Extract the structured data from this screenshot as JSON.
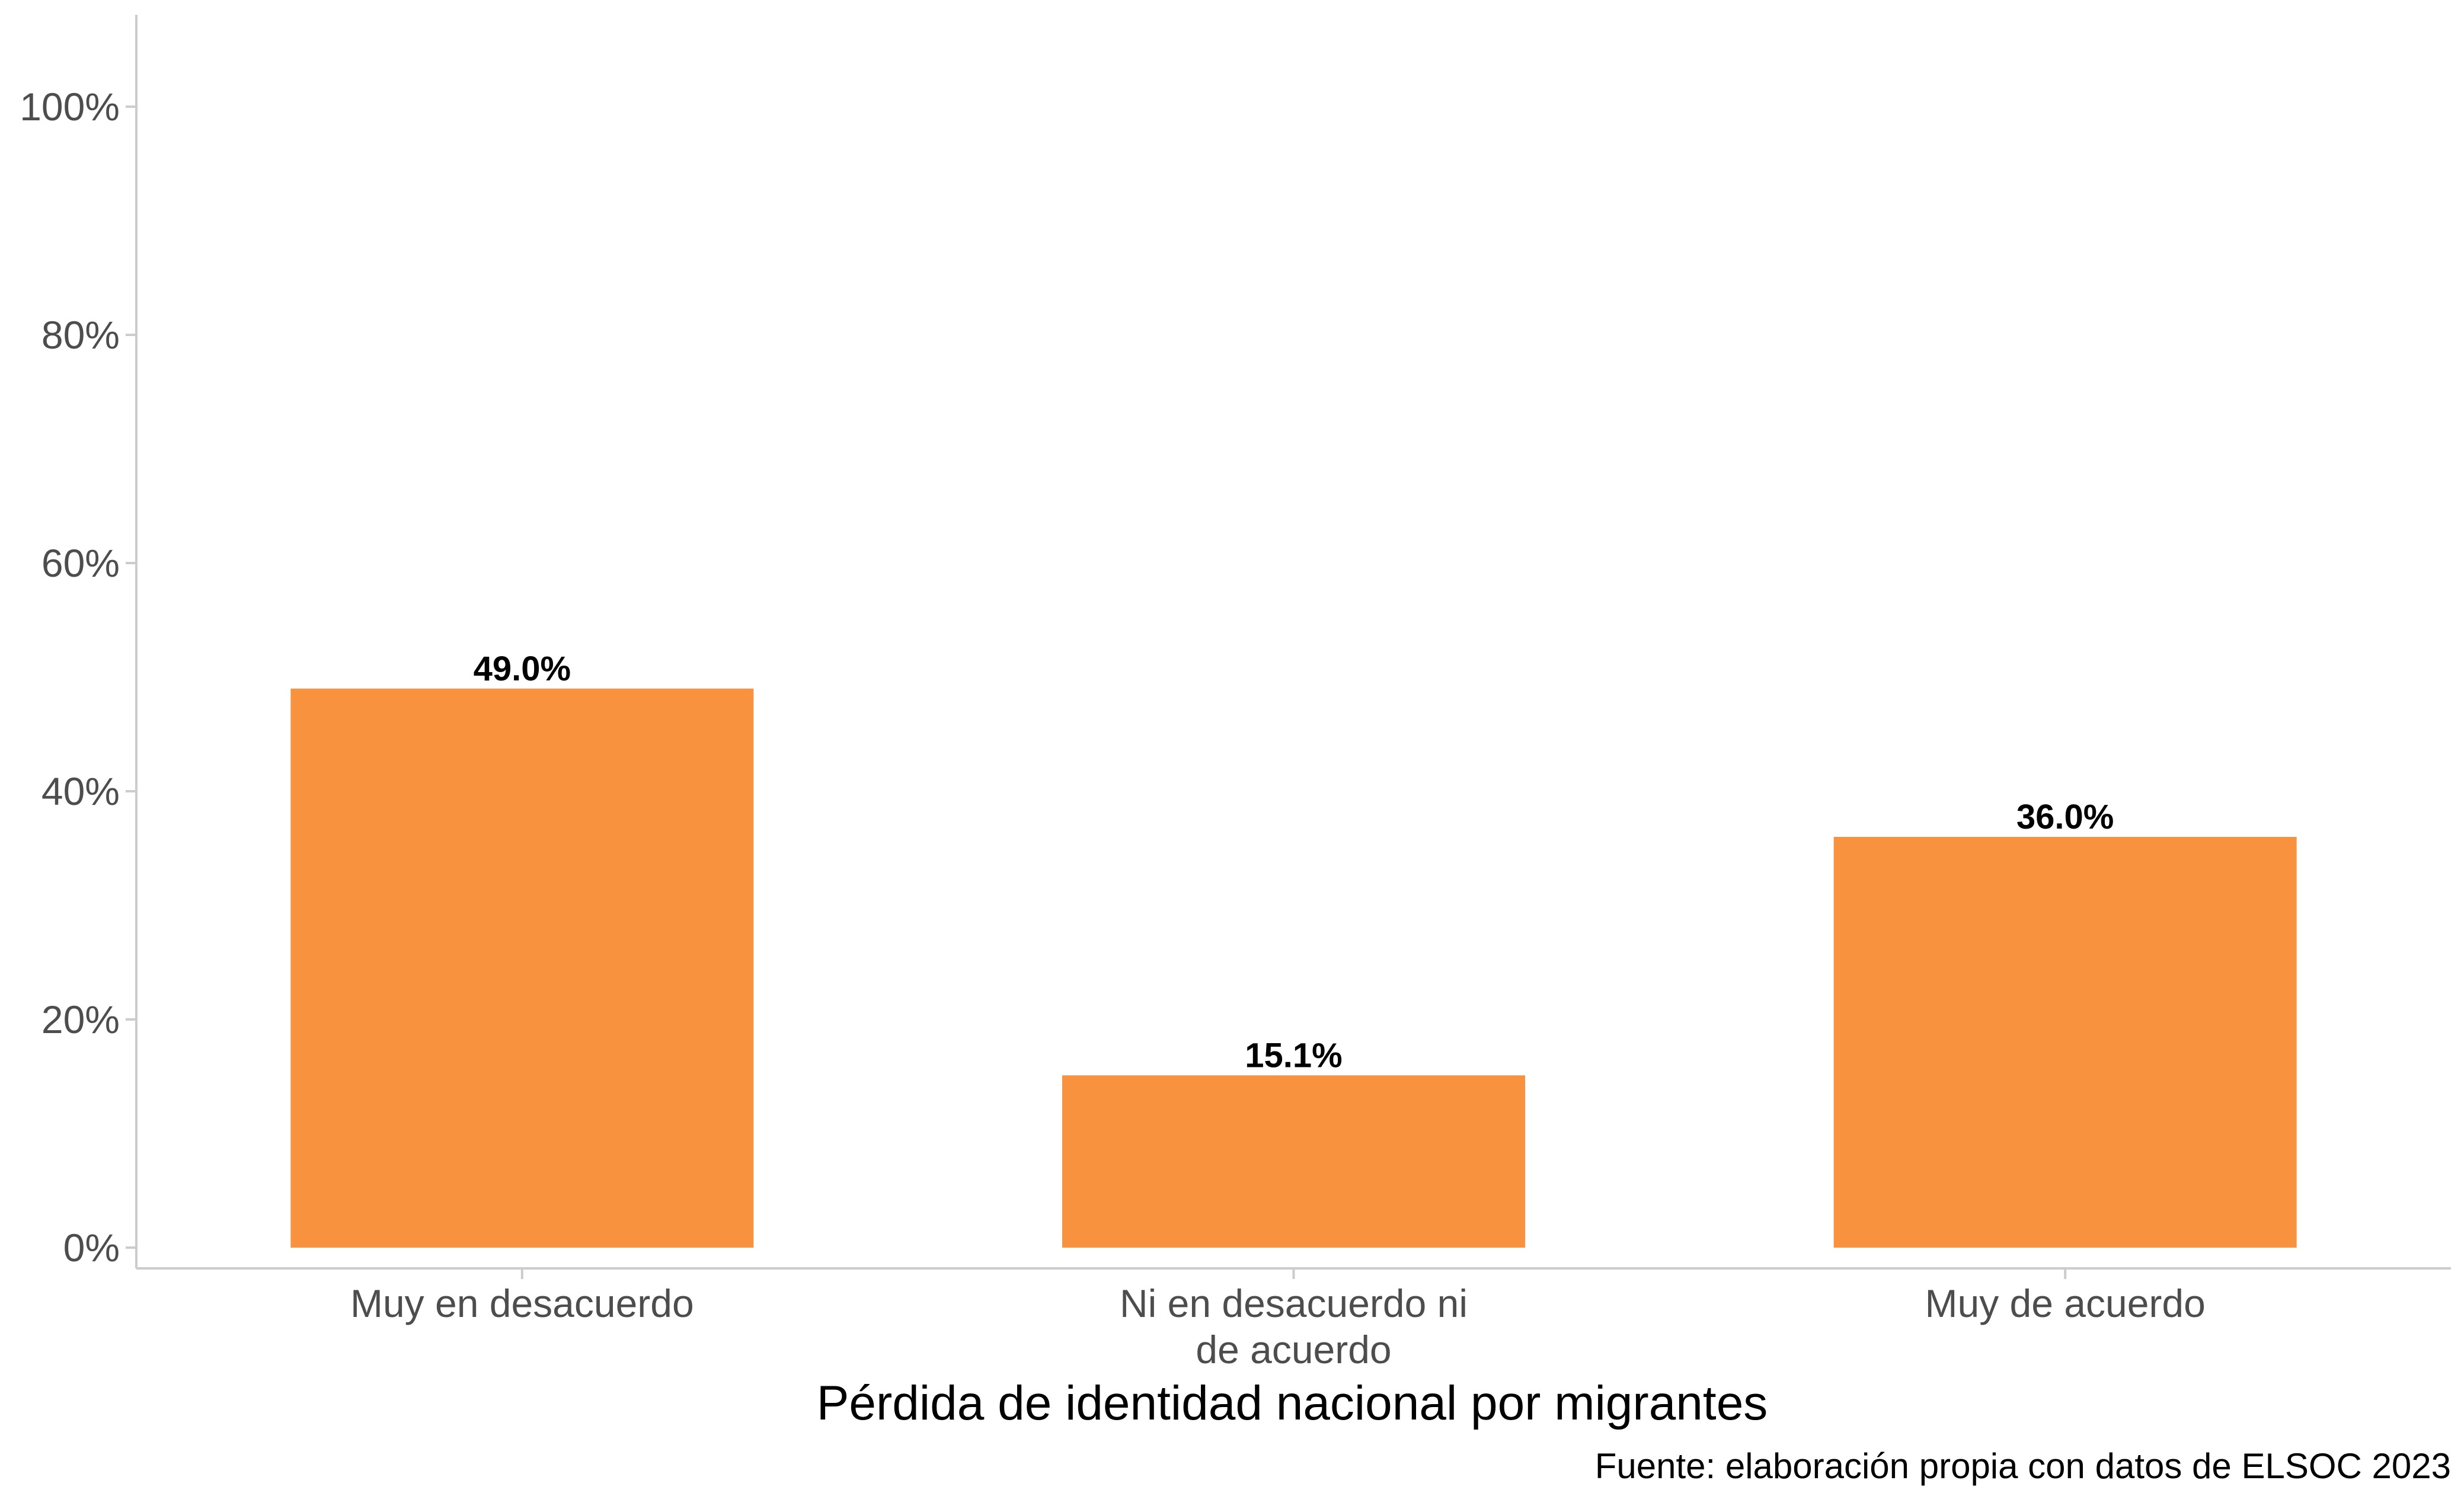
{
  "chart_data": {
    "type": "bar",
    "categories": [
      [
        "Muy en desacuerdo"
      ],
      [
        "Ni en desacuerdo ni",
        "de acuerdo"
      ],
      [
        "Muy de acuerdo"
      ]
    ],
    "values": [
      49.0,
      15.1,
      36.0
    ],
    "data_labels": [
      "49.0%",
      "15.1%",
      "36.0%"
    ],
    "xlabel": "Pérdida de identidad nacional por migrantes",
    "ylabel": "",
    "ylim": [
      0,
      100
    ],
    "yticks": [
      0,
      20,
      40,
      60,
      80,
      100
    ],
    "ytick_labels": [
      "0%",
      "20%",
      "40%",
      "60%",
      "80%",
      "100%"
    ],
    "caption": "Fuente: elaboración propia con datos de ELSOC 2023",
    "grid": false,
    "legend": "none",
    "colors": {
      "bar": "#f9923e",
      "axis": "#cccccc",
      "tick_text": "#4d4d4d",
      "label_text": "#000000"
    }
  }
}
